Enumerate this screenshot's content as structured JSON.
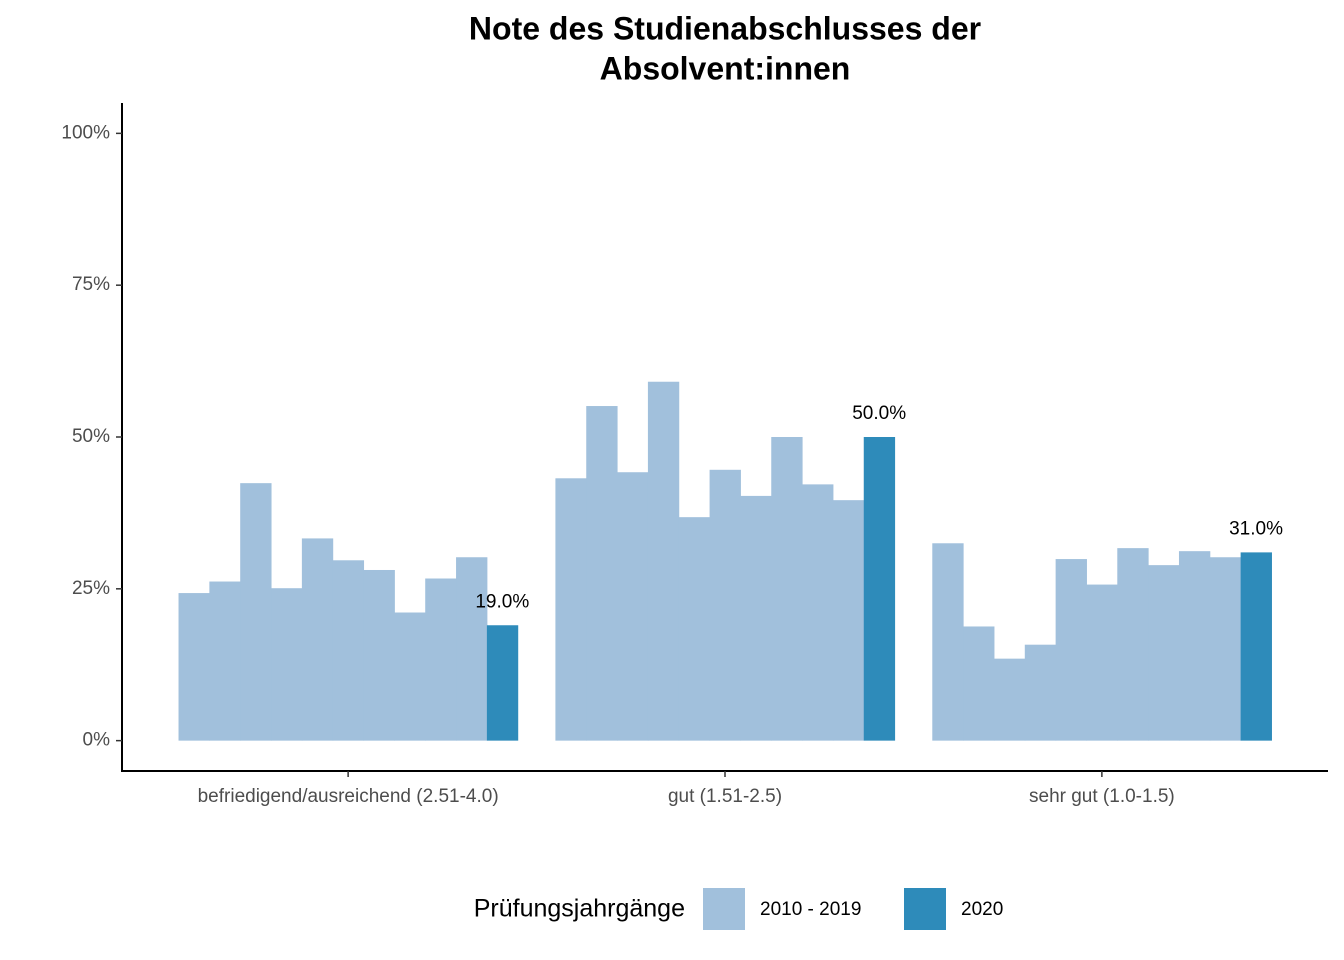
{
  "chart_data": {
    "type": "bar",
    "title": [
      "Note des Studienabschlusses der",
      "Absolvent:innen"
    ],
    "categories": [
      "befriedigend/ausreichend (2.51-4.0)",
      "gut (1.51-2.5)",
      "sehr gut (1.0-1.5)"
    ],
    "legend_title": "Prüfungsjahrgänge",
    "series": [
      {
        "name": "2010 - 2019",
        "color": "#a1c0dc",
        "values": [
          [
            24.3,
            26.2,
            42.4,
            25.1,
            33.3,
            29.7,
            28.1,
            21.1,
            26.7,
            30.2
          ],
          [
            43.2,
            55.1,
            44.2,
            59.1,
            36.8,
            44.6,
            40.3,
            50.0,
            42.2,
            39.6
          ],
          [
            32.5,
            18.8,
            13.5,
            15.8,
            29.9,
            25.7,
            31.7,
            28.9,
            31.2,
            30.2
          ]
        ]
      },
      {
        "name": "2020",
        "color": "#2e8bba",
        "values": [
          19.0,
          50.0,
          31.0
        ],
        "value_labels": [
          "19.0%",
          "50.0%",
          "31.0%"
        ]
      }
    ],
    "ylim": [
      -5,
      105
    ],
    "yticks": [
      {
        "value": 0,
        "label": "0%"
      },
      {
        "value": 25,
        "label": "25%"
      },
      {
        "value": 50,
        "label": "50%"
      },
      {
        "value": 75,
        "label": "75%"
      },
      {
        "value": 100,
        "label": "100%"
      }
    ],
    "legend": "bottom"
  }
}
